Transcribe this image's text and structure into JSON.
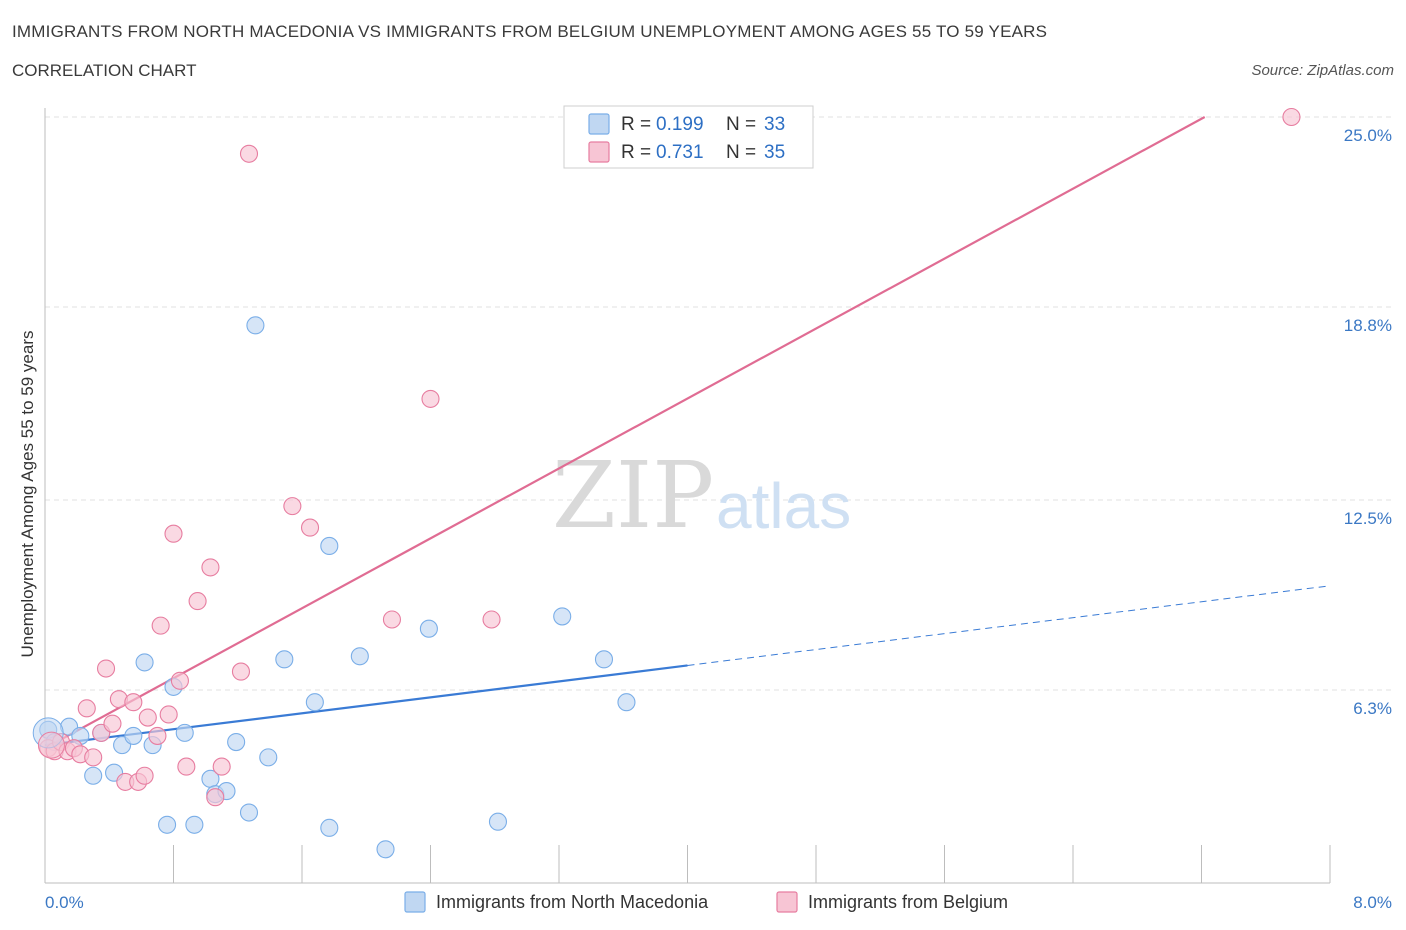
{
  "header": {
    "title": "IMMIGRANTS FROM NORTH MACEDONIA VS IMMIGRANTS FROM BELGIUM UNEMPLOYMENT AMONG AGES 55 TO 59 YEARS",
    "subtitle": "CORRELATION CHART",
    "source": "Source: ZipAtlas.com"
  },
  "watermark": {
    "zip": "ZIP",
    "atlas": "atlas"
  },
  "legend": {
    "r_label": "R =",
    "n_label": "N =",
    "rows": [
      {
        "r": "0.199",
        "n": "33"
      },
      {
        "r": "0.731",
        "n": "35"
      }
    ]
  },
  "chart_data": {
    "type": "scatter",
    "ylabel": "Unemployment Among Ages 55 to 59 years",
    "xlabel": "",
    "xlim": [
      0,
      8
    ],
    "ylim": [
      0,
      25
    ],
    "x_tick_labels": [
      "0.0%",
      "8.0%"
    ],
    "y_ticks": [
      6.3,
      12.5,
      18.8,
      25.0
    ],
    "y_tick_labels": [
      "6.3%",
      "12.5%",
      "18.8%",
      "25.0%"
    ],
    "grid": true,
    "series": [
      {
        "name": "Immigrants from North Macedonia",
        "color": "#7aaee8",
        "fill": "#c0d7f2",
        "r": 0.199,
        "n": 33,
        "trend": {
          "x0": 0.0,
          "y0": 4.5,
          "x1": 4.0,
          "y1": 7.1,
          "dash_to_x": 8.0,
          "dash_to_y": 9.7
        },
        "points": [
          [
            0.02,
            5.0
          ],
          [
            0.06,
            4.6
          ],
          [
            0.15,
            5.1
          ],
          [
            0.22,
            4.8
          ],
          [
            0.3,
            3.5
          ],
          [
            0.35,
            4.9
          ],
          [
            0.43,
            3.6
          ],
          [
            0.48,
            4.5
          ],
          [
            0.55,
            4.8
          ],
          [
            0.62,
            7.2
          ],
          [
            0.67,
            4.5
          ],
          [
            0.76,
            1.9
          ],
          [
            0.8,
            6.4
          ],
          [
            0.87,
            4.9
          ],
          [
            0.93,
            1.9
          ],
          [
            1.03,
            3.4
          ],
          [
            1.06,
            2.9
          ],
          [
            1.13,
            3.0
          ],
          [
            1.19,
            4.6
          ],
          [
            1.27,
            2.3
          ],
          [
            1.31,
            18.2
          ],
          [
            1.39,
            4.1
          ],
          [
            1.49,
            7.3
          ],
          [
            1.68,
            5.9
          ],
          [
            1.77,
            1.8
          ],
          [
            1.77,
            11.0
          ],
          [
            1.96,
            7.4
          ],
          [
            2.12,
            1.1
          ],
          [
            2.39,
            8.3
          ],
          [
            2.82,
            2.0
          ],
          [
            3.22,
            8.7
          ],
          [
            3.48,
            7.3
          ],
          [
            3.62,
            5.9
          ]
        ]
      },
      {
        "name": "Immigrants from Belgium",
        "color": "#e77da0",
        "fill": "#f7c5d4",
        "r": 0.731,
        "n": 35,
        "trend": {
          "x0": 0.0,
          "y0": 4.4,
          "x1": 7.22,
          "y1": 25.0
        },
        "points": [
          [
            0.02,
            4.4
          ],
          [
            0.06,
            4.3
          ],
          [
            0.1,
            4.6
          ],
          [
            0.14,
            4.3
          ],
          [
            0.18,
            4.4
          ],
          [
            0.22,
            4.2
          ],
          [
            0.26,
            5.7
          ],
          [
            0.3,
            4.1
          ],
          [
            0.35,
            4.9
          ],
          [
            0.38,
            7.0
          ],
          [
            0.42,
            5.2
          ],
          [
            0.46,
            6.0
          ],
          [
            0.5,
            3.3
          ],
          [
            0.55,
            5.9
          ],
          [
            0.58,
            3.3
          ],
          [
            0.62,
            3.5
          ],
          [
            0.64,
            5.4
          ],
          [
            0.7,
            4.8
          ],
          [
            0.72,
            8.4
          ],
          [
            0.77,
            5.5
          ],
          [
            0.8,
            11.4
          ],
          [
            0.84,
            6.6
          ],
          [
            0.88,
            3.8
          ],
          [
            0.95,
            9.2
          ],
          [
            1.03,
            10.3
          ],
          [
            1.06,
            2.8
          ],
          [
            1.1,
            3.8
          ],
          [
            1.22,
            6.9
          ],
          [
            1.27,
            23.8
          ],
          [
            1.54,
            12.3
          ],
          [
            1.65,
            11.6
          ],
          [
            2.16,
            8.6
          ],
          [
            2.4,
            15.8
          ],
          [
            2.78,
            8.6
          ],
          [
            7.76,
            25.0
          ]
        ]
      }
    ]
  }
}
